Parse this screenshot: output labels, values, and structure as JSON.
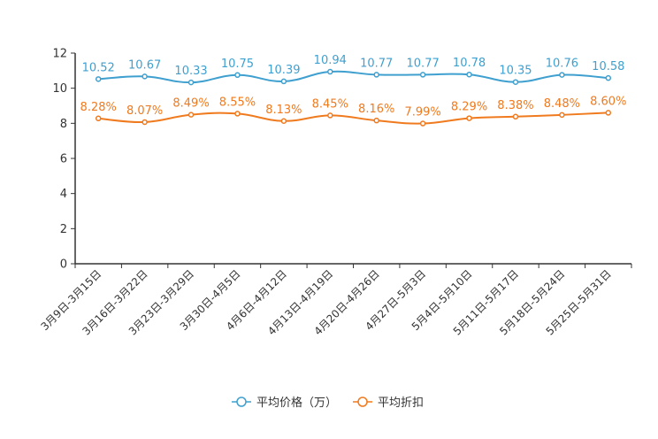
{
  "chart_data": {
    "type": "line",
    "title": "",
    "xlabel": "",
    "ylabel": "",
    "ylim": [
      0,
      12
    ],
    "yticks": [
      0,
      2,
      4,
      6,
      8,
      10,
      12
    ],
    "ytick_labels": [
      "0",
      "2",
      "4",
      "6",
      "8",
      "10",
      "12"
    ],
    "grid": false,
    "legend_position": "bottom-center",
    "categories": [
      "3月9日-3月15日",
      "3月16日-3月22日",
      "3月23日-3月29日",
      "3月30日-4月5日",
      "4月6日-4月12日",
      "4月13日-4月19日",
      "4月20日-4月26日",
      "4月27日-5月3日",
      "5月4日-5月10日",
      "5月11日-5月17日",
      "5月18日-5月24日",
      "5月25日-5月31日"
    ],
    "series": [
      {
        "name": "平均价格（万）",
        "color": "#3fa0d0",
        "values": [
          10.52,
          10.67,
          10.33,
          10.75,
          10.39,
          10.94,
          10.77,
          10.77,
          10.78,
          10.35,
          10.76,
          10.58
        ],
        "labels": [
          "10.52",
          "10.67",
          "10.33",
          "10.75",
          "10.39",
          "10.94",
          "10.77",
          "10.77",
          "10.78",
          "10.35",
          "10.76",
          "10.58"
        ]
      },
      {
        "name": "平均折扣",
        "color": "#f07a1e",
        "values": [
          8.28,
          8.07,
          8.49,
          8.55,
          8.13,
          8.45,
          8.16,
          7.99,
          8.29,
          8.38,
          8.48,
          8.6
        ],
        "labels": [
          "8.28%",
          "8.07%",
          "8.49%",
          "8.55%",
          "8.13%",
          "8.45%",
          "8.16%",
          "7.99%",
          "8.29%",
          "8.38%",
          "8.48%",
          "8.60%"
        ]
      }
    ]
  }
}
